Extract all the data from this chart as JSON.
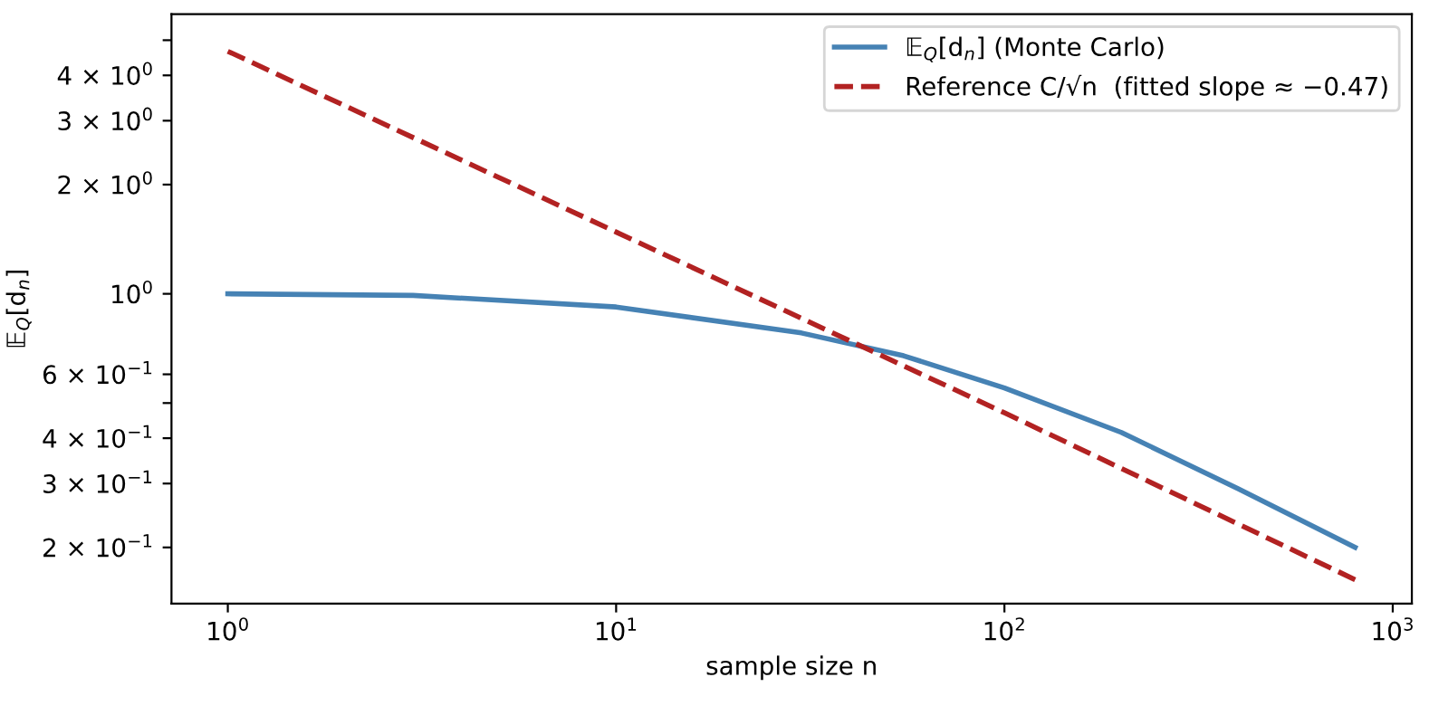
{
  "chart_data": {
    "type": "line",
    "xlabel": "sample size n",
    "ylabel": "𝔼$_{Q}$[d$_{n}$]",
    "log": "xy",
    "legend": "top right",
    "grid": false,
    "xlim": [
      0.716,
      1120
    ],
    "ylim": [
      0.14,
      5.9
    ],
    "xticks": [
      {
        "value": 1,
        "label": "10$^{0}$"
      },
      {
        "value": 10,
        "label": "10$^{1}$"
      },
      {
        "value": 100,
        "label": "10$^{2}$"
      },
      {
        "value": 1000,
        "label": "10$^{3}$"
      }
    ],
    "yticks": [
      {
        "value": 0.2,
        "label": "2 × 10$^{−1}$"
      },
      {
        "value": 0.3,
        "label": "3 × 10$^{−1}$"
      },
      {
        "value": 0.4,
        "label": "4 × 10$^{−1}$"
      },
      {
        "value": 0.5,
        "label": null
      },
      {
        "value": 0.6,
        "label": "6 × 10$^{−1}$"
      },
      {
        "value": 1,
        "label": "10$^{0}$"
      },
      {
        "value": 2,
        "label": "2 × 10$^{0}$"
      },
      {
        "value": 3,
        "label": "3 × 10$^{0}$"
      },
      {
        "value": 4,
        "label": "4 × 10$^{0}$"
      },
      {
        "value": 5,
        "label": null
      }
    ],
    "series": [
      {
        "name": "𝔼$_{Q}$[d$_{n}$] (Monte Carlo)",
        "color": "#4682b4",
        "line_style": "solid",
        "x": [
          1,
          3,
          10,
          30,
          55,
          100,
          200,
          400,
          800
        ],
        "values": [
          1.0,
          0.99,
          0.92,
          0.78,
          0.675,
          0.55,
          0.415,
          0.29,
          0.2
        ]
      },
      {
        "name": "Reference C/√n  (fitted slope ≈ −0.47)",
        "color": "#b22222",
        "line_style": "dashed",
        "x": [
          1,
          10,
          100,
          800
        ],
        "values": [
          4.66,
          1.48,
          0.47,
          0.163
        ]
      }
    ]
  }
}
